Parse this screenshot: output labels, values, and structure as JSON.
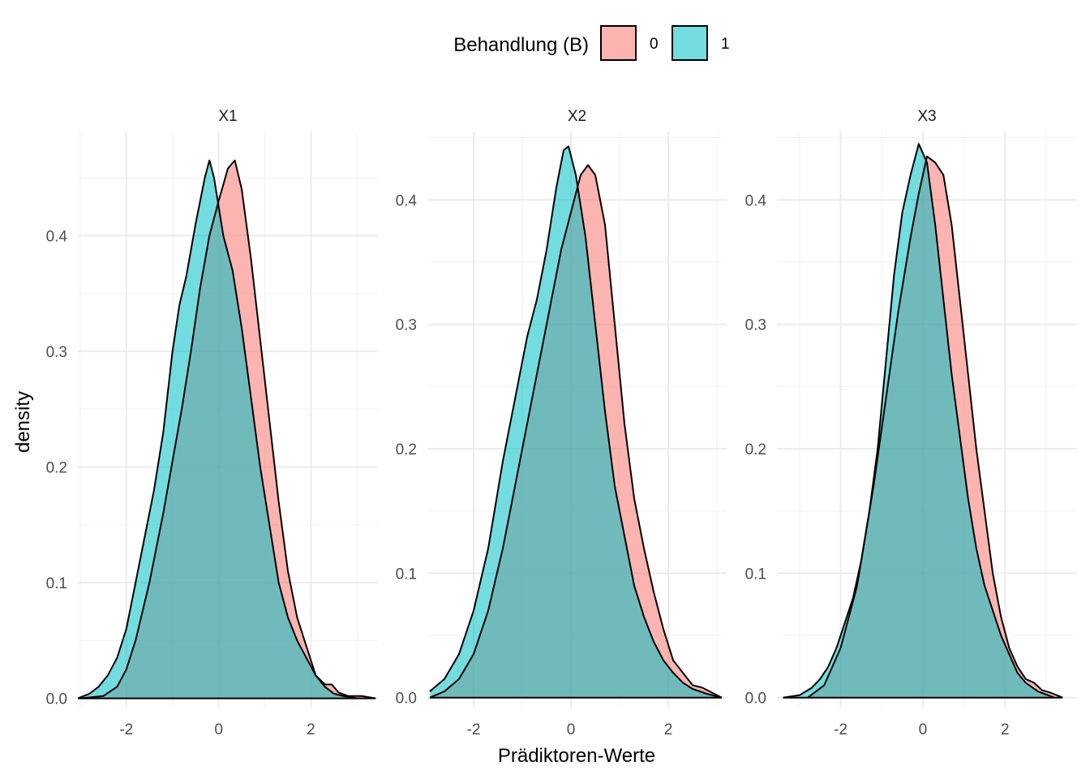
{
  "chart_data": {
    "type": "area",
    "chart_kind": "faceted-density",
    "xlabel": "Prädiktoren-Werte",
    "ylabel": "density",
    "grid": true,
    "legend": {
      "title": "Behandlung (B)",
      "placement": "top",
      "entries": [
        {
          "label": "0",
          "color": "#F8766D"
        },
        {
          "label": "1",
          "color": "#00BFC4"
        }
      ]
    },
    "fill_opacity": 0.55,
    "facets": [
      {
        "name": "X1",
        "xlim": [
          -3.05,
          3.45
        ],
        "ylim": [
          -0.008,
          0.49
        ],
        "x_ticks": [
          -2,
          0,
          2
        ],
        "x_tick_labels": [
          "-2",
          "0",
          "2"
        ],
        "y_ticks": [
          0.0,
          0.1,
          0.2,
          0.3,
          0.4
        ],
        "y_tick_labels": [
          "0.0",
          "0.1",
          "0.2",
          "0.3",
          "0.4"
        ],
        "series": [
          {
            "name": "0",
            "x": [
              -3.0,
              -2.5,
              -2.2,
              -2.0,
              -1.8,
              -1.5,
              -1.2,
              -1.0,
              -0.8,
              -0.6,
              -0.4,
              -0.2,
              0.0,
              0.2,
              0.35,
              0.5,
              0.7,
              0.9,
              1.1,
              1.3,
              1.5,
              1.7,
              1.9,
              2.1,
              2.3,
              2.45,
              2.6,
              2.8,
              3.1,
              3.4
            ],
            "y": [
              0.0,
              0.002,
              0.01,
              0.025,
              0.05,
              0.1,
              0.16,
              0.205,
              0.25,
              0.3,
              0.355,
              0.4,
              0.43,
              0.458,
              0.465,
              0.44,
              0.38,
              0.31,
              0.24,
              0.17,
              0.11,
              0.07,
              0.045,
              0.02,
              0.012,
              0.012,
              0.005,
              0.002,
              0.002,
              0.0
            ]
          },
          {
            "name": "1",
            "x": [
              -3.05,
              -2.8,
              -2.6,
              -2.4,
              -2.2,
              -2.0,
              -1.8,
              -1.6,
              -1.4,
              -1.2,
              -1.0,
              -0.85,
              -0.7,
              -0.5,
              -0.3,
              -0.2,
              -0.1,
              0.1,
              0.3,
              0.5,
              0.7,
              0.9,
              1.1,
              1.3,
              1.5,
              1.7,
              1.9,
              2.1,
              2.3,
              2.5,
              2.7,
              3.0
            ],
            "y": [
              0.0,
              0.004,
              0.01,
              0.02,
              0.035,
              0.06,
              0.1,
              0.14,
              0.18,
              0.23,
              0.3,
              0.34,
              0.365,
              0.41,
              0.45,
              0.465,
              0.45,
              0.4,
              0.37,
              0.32,
              0.26,
              0.2,
              0.15,
              0.1,
              0.07,
              0.05,
              0.035,
              0.02,
              0.01,
              0.004,
              0.002,
              0.0
            ]
          }
        ]
      },
      {
        "name": "X2",
        "xlim": [
          -2.95,
          3.2
        ],
        "ylim": [
          -0.008,
          0.455
        ],
        "x_ticks": [
          -2,
          0,
          2
        ],
        "x_tick_labels": [
          "-2",
          "0",
          "2"
        ],
        "y_ticks": [
          0.0,
          0.1,
          0.2,
          0.3,
          0.4
        ],
        "y_tick_labels": [
          "0.0",
          "0.1",
          "0.2",
          "0.3",
          "0.4"
        ],
        "series": [
          {
            "name": "0",
            "x": [
              -2.9,
              -2.6,
              -2.3,
              -2.0,
              -1.7,
              -1.4,
              -1.1,
              -0.8,
              -0.5,
              -0.2,
              0.0,
              0.2,
              0.35,
              0.5,
              0.7,
              0.9,
              1.1,
              1.3,
              1.5,
              1.7,
              1.9,
              2.1,
              2.3,
              2.5,
              2.7,
              2.9,
              3.1
            ],
            "y": [
              0.0,
              0.005,
              0.015,
              0.035,
              0.07,
              0.12,
              0.18,
              0.24,
              0.3,
              0.36,
              0.39,
              0.42,
              0.428,
              0.42,
              0.38,
              0.3,
              0.22,
              0.16,
              0.12,
              0.085,
              0.055,
              0.03,
              0.02,
              0.01,
              0.008,
              0.004,
              0.0
            ]
          },
          {
            "name": "1",
            "x": [
              -2.9,
              -2.6,
              -2.3,
              -2.0,
              -1.7,
              -1.4,
              -1.1,
              -0.9,
              -0.7,
              -0.5,
              -0.3,
              -0.15,
              -0.05,
              0.1,
              0.3,
              0.5,
              0.7,
              0.9,
              1.1,
              1.3,
              1.5,
              1.7,
              1.9,
              2.1,
              2.3,
              2.5,
              2.8,
              3.1
            ],
            "y": [
              0.005,
              0.015,
              0.035,
              0.07,
              0.12,
              0.19,
              0.25,
              0.29,
              0.32,
              0.36,
              0.41,
              0.44,
              0.443,
              0.42,
              0.37,
              0.3,
              0.23,
              0.17,
              0.13,
              0.09,
              0.065,
              0.045,
              0.03,
              0.02,
              0.012,
              0.007,
              0.003,
              0.0
            ]
          }
        ]
      },
      {
        "name": "X3",
        "xlim": [
          -3.55,
          3.75
        ],
        "ylim": [
          -0.008,
          0.455
        ],
        "x_ticks": [
          -2,
          0,
          2
        ],
        "x_tick_labels": [
          "-2",
          "0",
          "2"
        ],
        "y_ticks": [
          0.0,
          0.1,
          0.2,
          0.3,
          0.4
        ],
        "y_tick_labels": [
          "0.0",
          "0.1",
          "0.2",
          "0.3",
          "0.4"
        ],
        "series": [
          {
            "name": "0",
            "x": [
              -2.8,
              -2.4,
              -2.0,
              -1.6,
              -1.2,
              -0.9,
              -0.6,
              -0.3,
              -0.1,
              0.1,
              0.3,
              0.5,
              0.7,
              0.9,
              1.1,
              1.3,
              1.5,
              1.7,
              1.9,
              2.1,
              2.3,
              2.5,
              2.7,
              2.9,
              3.1,
              3.4
            ],
            "y": [
              0.0,
              0.01,
              0.04,
              0.09,
              0.17,
              0.24,
              0.31,
              0.37,
              0.405,
              0.435,
              0.43,
              0.42,
              0.38,
              0.32,
              0.26,
              0.2,
              0.15,
              0.1,
              0.065,
              0.04,
              0.025,
              0.015,
              0.012,
              0.006,
              0.004,
              0.0
            ]
          },
          {
            "name": "1",
            "x": [
              -3.4,
              -3.0,
              -2.7,
              -2.5,
              -2.3,
              -2.1,
              -1.9,
              -1.7,
              -1.5,
              -1.3,
              -1.1,
              -0.9,
              -0.7,
              -0.5,
              -0.3,
              -0.1,
              0.1,
              0.3,
              0.5,
              0.7,
              0.9,
              1.1,
              1.3,
              1.5,
              1.7,
              1.9,
              2.1,
              2.3,
              2.5,
              2.8,
              3.2
            ],
            "y": [
              0.0,
              0.002,
              0.008,
              0.015,
              0.025,
              0.04,
              0.06,
              0.08,
              0.11,
              0.15,
              0.2,
              0.27,
              0.34,
              0.39,
              0.42,
              0.445,
              0.43,
              0.38,
              0.32,
              0.26,
              0.21,
              0.16,
              0.12,
              0.09,
              0.07,
              0.05,
              0.035,
              0.02,
              0.012,
              0.005,
              0.0
            ]
          }
        ]
      }
    ]
  }
}
